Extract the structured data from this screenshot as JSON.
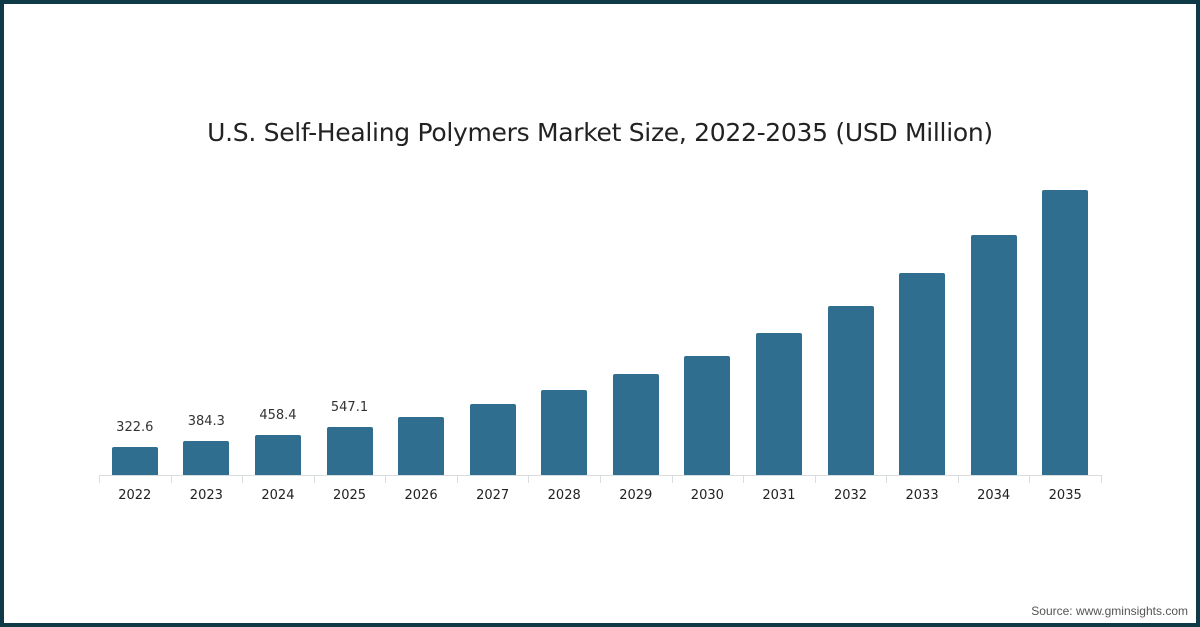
{
  "chart_data": {
    "type": "bar",
    "title": "U.S. Self-Healing Polymers Market Size, 2022-2035 (USD Million)",
    "xlabel": "",
    "ylabel": "",
    "categories": [
      "2022",
      "2023",
      "2024",
      "2025",
      "2026",
      "2027",
      "2028",
      "2029",
      "2030",
      "2031",
      "2032",
      "2033",
      "2034",
      "2035"
    ],
    "values": [
      322.6,
      384.3,
      458.4,
      547.1,
      662,
      809,
      968,
      1150,
      1354,
      1615,
      1915,
      2285,
      2716,
      3231
    ],
    "data_labels": [
      "322.6",
      "384.3",
      "458.4",
      "547.1",
      "",
      "",
      "",
      "",
      "",
      "",
      "",
      "",
      "",
      ""
    ],
    "ylim": [
      0,
      3231
    ],
    "grid": false,
    "legend": null,
    "bar_color": "#2f6e8e"
  },
  "source": "Source: www.gminsights.com",
  "colors": {
    "frame": "#0e3a48",
    "bar": "#2f6e8e"
  }
}
